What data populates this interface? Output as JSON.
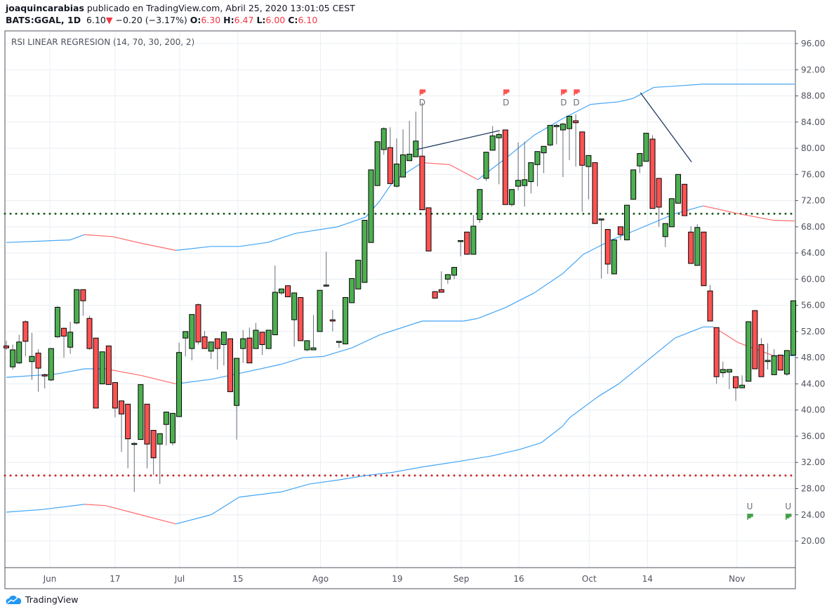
{
  "header": {
    "author": "joaquincarabias",
    "published": "publicado en TradingView.com, Abril 25, 2020 13:01:05 CEST",
    "symbol": "BATS:GGAL, 1D",
    "last": "6.10",
    "change": "−0.20 (−3.17%)",
    "o_label": "O:",
    "o": "6.30",
    "h_label": "H:",
    "h": "6.47",
    "l_label": "L:",
    "l": "6.00",
    "c_label": "C:",
    "c": "6.10"
  },
  "footer": {
    "brand": "TradingView"
  },
  "colors": {
    "up": "#4caf50",
    "down": "#ff5252",
    "band": "#42a5f5",
    "band_down": "#ff6b6b",
    "ob": "#1b5e20",
    "os": "#c62828",
    "signal_down": "#ff5252",
    "signal_up": "#43a047"
  },
  "chart_data": {
    "type": "candlestick",
    "title": "RSI LINEAR REGRESION (14, 70, 30, 200, 2)",
    "ylim": [
      16,
      98
    ],
    "yticks": [
      "96.00",
      "92.00",
      "88.00",
      "84.00",
      "80.00",
      "76.00",
      "72.00",
      "68.00",
      "64.00",
      "60.00",
      "56.00",
      "52.00",
      "48.00",
      "44.00",
      "40.00",
      "36.00",
      "32.00",
      "28.00",
      "24.00",
      "20.00"
    ],
    "xticks": [
      {
        "bar": 6.8,
        "label": "Jun"
      },
      {
        "bar": 17,
        "label": "17"
      },
      {
        "bar": 27.1,
        "label": "Jul"
      },
      {
        "bar": 36.2,
        "label": "15"
      },
      {
        "bar": 49.1,
        "label": "Ago"
      },
      {
        "bar": 61.1,
        "label": "19"
      },
      {
        "bar": 71.1,
        "label": "Sep"
      },
      {
        "bar": 80.1,
        "label": "16"
      },
      {
        "bar": 91.1,
        "label": "Oct"
      },
      {
        "bar": 100.2,
        "label": "14"
      },
      {
        "bar": 114.2,
        "label": "Nov"
      }
    ],
    "levels": {
      "overbought": 70,
      "oversold": 30
    },
    "candles_ohlc": [
      [
        49.8,
        50.6,
        49.2,
        49.5
      ],
      [
        46.6,
        50.0,
        46.2,
        49.2
      ],
      [
        47.2,
        51.5,
        47.0,
        50.4
      ],
      [
        53.5,
        53.7,
        48.2,
        50.5
      ],
      [
        47.4,
        51.8,
        44.6,
        48.2
      ],
      [
        48.7,
        49.3,
        42.8,
        46.4
      ],
      [
        45.4,
        45.6,
        43.3,
        45.2
      ],
      [
        44.6,
        49.4,
        44.4,
        49.4
      ],
      [
        51.2,
        55.9,
        51.0,
        55.7
      ],
      [
        52.5,
        52.6,
        48.0,
        51.3
      ],
      [
        49.6,
        53.5,
        48.6,
        51.9
      ],
      [
        53.3,
        58.4,
        53.1,
        58.4
      ],
      [
        58.4,
        58.4,
        54.4,
        56.7
      ],
      [
        54.0,
        54.4,
        49.2,
        49.4
      ],
      [
        51.0,
        51.0,
        40.3,
        40.3
      ],
      [
        44.0,
        48.9,
        44.0,
        48.9
      ],
      [
        49.8,
        49.8,
        43.9,
        43.9
      ],
      [
        44.2,
        44.2,
        38.9,
        40.3
      ],
      [
        41.4,
        41.4,
        33.6,
        39.4
      ],
      [
        40.9,
        40.9,
        31.1,
        35.6
      ],
      [
        34.9,
        35.1,
        27.5,
        34.9
      ],
      [
        35.5,
        43.9,
        35.5,
        43.9
      ],
      [
        40.9,
        40.9,
        31.1,
        34.8
      ],
      [
        36.9,
        36.9,
        30.1,
        32.7
      ],
      [
        34.8,
        36.4,
        28.7,
        36.4
      ],
      [
        37.8,
        39.7,
        34.6,
        39.7
      ],
      [
        35.0,
        39.5,
        34.6,
        39.5
      ],
      [
        39.0,
        50.3,
        39.0,
        48.8
      ],
      [
        51.0,
        52.0,
        48.2,
        52.0
      ],
      [
        49.4,
        54.6,
        47.6,
        54.6
      ],
      [
        56.1,
        56.3,
        50.0,
        50.4
      ],
      [
        51.2,
        52.1,
        49.4,
        49.4
      ],
      [
        49.0,
        50.4,
        47.8,
        50.4
      ],
      [
        50.9,
        50.9,
        46.2,
        49.4
      ],
      [
        50.0,
        51.9,
        46.8,
        51.9
      ],
      [
        50.9,
        50.9,
        42.8,
        42.8
      ],
      [
        40.7,
        47.9,
        35.5,
        47.9
      ],
      [
        49.4,
        52.2,
        47.2,
        50.9
      ],
      [
        51.0,
        52.6,
        47.2,
        47.2
      ],
      [
        49.4,
        53.3,
        49.4,
        52.2
      ],
      [
        51.9,
        51.9,
        48.4,
        50.0
      ],
      [
        49.4,
        52.2,
        49.4,
        52.2
      ],
      [
        51.5,
        62.1,
        51.5,
        58.0
      ],
      [
        57.9,
        58.6,
        57.6,
        58.5
      ],
      [
        59.0,
        59.0,
        57.3,
        57.3
      ],
      [
        53.8,
        57.9,
        49.7,
        57.9
      ],
      [
        57.2,
        57.2,
        50.6,
        50.6
      ],
      [
        49.2,
        50.6,
        49.0,
        50.6
      ],
      [
        49.2,
        54.5,
        49.2,
        49.5
      ],
      [
        52.0,
        58.3,
        52.0,
        58.3
      ],
      [
        59.1,
        64.2,
        58.8,
        59.1
      ],
      [
        53.8,
        55.3,
        52.0,
        53.6
      ],
      [
        50.5,
        50.5,
        49.5,
        50.5
      ],
      [
        50.1,
        57.2,
        50.1,
        57.2
      ],
      [
        56.4,
        60.1,
        56.4,
        60.1
      ],
      [
        58.5,
        62.9,
        58.5,
        62.9
      ],
      [
        59.5,
        69.0,
        59.5,
        69.0
      ],
      [
        65.6,
        76.7,
        65.6,
        76.7
      ],
      [
        74.3,
        81.0,
        74.3,
        81.0
      ],
      [
        79.8,
        83.2,
        79.0,
        83.0
      ],
      [
        80.1,
        83.2,
        74.6,
        74.6
      ],
      [
        74.2,
        81.5,
        74.0,
        77.6
      ],
      [
        75.6,
        82.9,
        75.6,
        79.0
      ],
      [
        78.1,
        84.2,
        78.1,
        79.1
      ],
      [
        78.7,
        85.6,
        78.7,
        81.1
      ],
      [
        78.8,
        87.0,
        70.6,
        70.6
      ],
      [
        70.9,
        70.9,
        64.3,
        64.3
      ],
      [
        58.1,
        58.1,
        57.1,
        57.1
      ],
      [
        58.4,
        61.2,
        58.0,
        58.0
      ],
      [
        60.0,
        60.7,
        59.3,
        60.7
      ],
      [
        60.6,
        61.8,
        60.0,
        61.8
      ],
      [
        65.9,
        65.9,
        63.5,
        65.9
      ],
      [
        67.2,
        67.2,
        63.8,
        63.8
      ],
      [
        63.8,
        69.8,
        63.8,
        68.1
      ],
      [
        69.1,
        73.7,
        68.6,
        73.7
      ],
      [
        75.4,
        79.4,
        75.0,
        79.4
      ],
      [
        79.7,
        83.4,
        79.7,
        81.9
      ],
      [
        81.6,
        82.4,
        74.5,
        82.1
      ],
      [
        82.8,
        82.8,
        71.4,
        71.4
      ],
      [
        71.4,
        73.7,
        71.1,
        73.7
      ],
      [
        74.2,
        80.9,
        73.6,
        75.1
      ],
      [
        74.3,
        81.0,
        71.1,
        75.2
      ],
      [
        74.9,
        77.8,
        73.1,
        77.8
      ],
      [
        77.5,
        79.5,
        74.2,
        79.5
      ],
      [
        79.3,
        80.3,
        76.2,
        80.3
      ],
      [
        80.5,
        83.5,
        80.3,
        83.5
      ],
      [
        83.3,
        83.8,
        80.6,
        83.5
      ],
      [
        82.8,
        83.9,
        75.6,
        83.7
      ],
      [
        83.0,
        84.9,
        78.2,
        84.9
      ],
      [
        84.2,
        85.2,
        77.2,
        83.9
      ],
      [
        82.5,
        82.5,
        70.3,
        77.4
      ],
      [
        77.2,
        78.9,
        72.2,
        78.9
      ],
      [
        77.8,
        77.8,
        68.5,
        68.5
      ],
      [
        69.2,
        69.2,
        60.1,
        69.2
      ],
      [
        67.6,
        67.6,
        60.8,
        62.3
      ],
      [
        60.8,
        66.0,
        60.8,
        66.0
      ],
      [
        68.0,
        68.0,
        66.0,
        66.8
      ],
      [
        66.0,
        71.3,
        66.0,
        71.3
      ],
      [
        72.2,
        76.7,
        72.2,
        76.7
      ],
      [
        77.3,
        79.2,
        76.2,
        79.2
      ],
      [
        78.0,
        82.3,
        78.0,
        82.3
      ],
      [
        81.4,
        82.0,
        70.8,
        70.8
      ],
      [
        75.4,
        75.4,
        68.0,
        71.0
      ],
      [
        66.5,
        68.5,
        64.9,
        68.5
      ],
      [
        68.0,
        72.3,
        68.0,
        72.3
      ],
      [
        71.6,
        76.0,
        71.6,
        76.0
      ],
      [
        74.5,
        74.5,
        69.7,
        69.7
      ],
      [
        67.2,
        68.1,
        62.4,
        62.4
      ],
      [
        62.1,
        68.4,
        62.1,
        67.9
      ],
      [
        67.2,
        67.2,
        59.0,
        59.0
      ],
      [
        58.2,
        59.1,
        53.6,
        53.6
      ],
      [
        52.6,
        52.6,
        44.0,
        45.1
      ],
      [
        45.7,
        47.4,
        45.0,
        46.2
      ],
      [
        45.8,
        46.2,
        43.2,
        46.2
      ],
      [
        45.1,
        45.1,
        41.4,
        43.4
      ],
      [
        43.4,
        45.3,
        43.4,
        43.8
      ],
      [
        44.4,
        53.5,
        44.4,
        53.5
      ],
      [
        55.2,
        55.2,
        46.3,
        46.3
      ],
      [
        50.0,
        51.0,
        45.1,
        45.1
      ],
      [
        47.4,
        50.2,
        46.2,
        47.6
      ],
      [
        45.4,
        49.3,
        45.4,
        48.3
      ],
      [
        48.4,
        48.4,
        46.1,
        46.1
      ],
      [
        45.5,
        49.1,
        45.2,
        49.1
      ],
      [
        48.4,
        56.7,
        48.4,
        56.7
      ]
    ],
    "bands": {
      "upper": [
        [
          0,
          65.6
        ],
        [
          10,
          66.0
        ],
        [
          12.2,
          66.8
        ],
        [
          16.6,
          66.5
        ],
        [
          21,
          65.5
        ],
        [
          26.5,
          64.4
        ],
        [
          32,
          65.0
        ],
        [
          36.4,
          65.0
        ],
        [
          40.8,
          65.6
        ],
        [
          45.2,
          67.0
        ],
        [
          51.8,
          68.0
        ],
        [
          56.2,
          69.5
        ],
        [
          58.4,
          72
        ],
        [
          60.5,
          75
        ],
        [
          65,
          77.8
        ],
        [
          69.3,
          77.5
        ],
        [
          73.7,
          75.2
        ],
        [
          78.1,
          78.5
        ],
        [
          82.5,
          82
        ],
        [
          86.9,
          84.5
        ],
        [
          91.3,
          86.7
        ],
        [
          95.7,
          87.1
        ],
        [
          97.9,
          87.6
        ],
        [
          101.2,
          89.3
        ],
        [
          104.5,
          89.5
        ],
        [
          108.9,
          89.8
        ],
        [
          123.2,
          89.8
        ]
      ],
      "middle": [
        [
          0,
          45
        ],
        [
          7.8,
          45.5
        ],
        [
          12.2,
          46.3
        ],
        [
          15.5,
          46.3
        ],
        [
          21,
          45.3
        ],
        [
          26.5,
          44.0
        ],
        [
          32,
          44.7
        ],
        [
          36.4,
          45.6
        ],
        [
          43,
          47.0
        ],
        [
          46.3,
          48.0
        ],
        [
          49.6,
          48.2
        ],
        [
          54,
          49.5
        ],
        [
          58.4,
          51.5
        ],
        [
          65,
          53.6
        ],
        [
          71.5,
          53.6
        ],
        [
          73.7,
          54.0
        ],
        [
          78.1,
          55.7
        ],
        [
          82.5,
          57.9
        ],
        [
          86.9,
          60.8
        ],
        [
          90.2,
          63.8
        ],
        [
          94.6,
          66.0
        ],
        [
          97.9,
          67.3
        ],
        [
          104.5,
          70.0
        ],
        [
          108.9,
          71.2
        ],
        [
          114.4,
          70.0
        ],
        [
          119.9,
          69.0
        ],
        [
          123.2,
          68.9
        ]
      ],
      "lower": [
        [
          0,
          24.4
        ],
        [
          5.6,
          24.8
        ],
        [
          12.2,
          25.6
        ],
        [
          15.5,
          25.4
        ],
        [
          21,
          24.0
        ],
        [
          26.5,
          22.6
        ],
        [
          32,
          24.0
        ],
        [
          36.4,
          26.7
        ],
        [
          43,
          27.5
        ],
        [
          47.4,
          28.7
        ],
        [
          51.8,
          29.3
        ],
        [
          56.2,
          30.0
        ],
        [
          60.5,
          30.5
        ],
        [
          65,
          31.3
        ],
        [
          70.4,
          32.1
        ],
        [
          75.9,
          33.0
        ],
        [
          80.3,
          34.0
        ],
        [
          83.6,
          35.0
        ],
        [
          86.9,
          37.5
        ],
        [
          88,
          38.8
        ],
        [
          92.4,
          42.0
        ],
        [
          95.7,
          44.0
        ],
        [
          100.1,
          47.5
        ],
        [
          104.5,
          51.0
        ],
        [
          108.9,
          52.7
        ],
        [
          110.5,
          52.7
        ],
        [
          114.4,
          50.3
        ],
        [
          119.9,
          48.3
        ],
        [
          123.2,
          48.3
        ]
      ]
    },
    "trendlines": [
      [
        [
          64.1,
          79.8
        ],
        [
          77.1,
          82.7
        ]
      ],
      [
        [
          99.1,
          88.5
        ],
        [
          107.1,
          77.9
        ]
      ]
    ],
    "signals": [
      {
        "bar": 65,
        "type": "down",
        "label": "D"
      },
      {
        "bar": 78.1,
        "type": "down",
        "label": "D"
      },
      {
        "bar": 87.1,
        "type": "down",
        "label": "D"
      },
      {
        "bar": 89.1,
        "type": "down",
        "label": "D"
      },
      {
        "bar": 116.2,
        "type": "up",
        "label": "U"
      },
      {
        "bar": 122.2,
        "type": "up",
        "label": "U"
      }
    ]
  }
}
